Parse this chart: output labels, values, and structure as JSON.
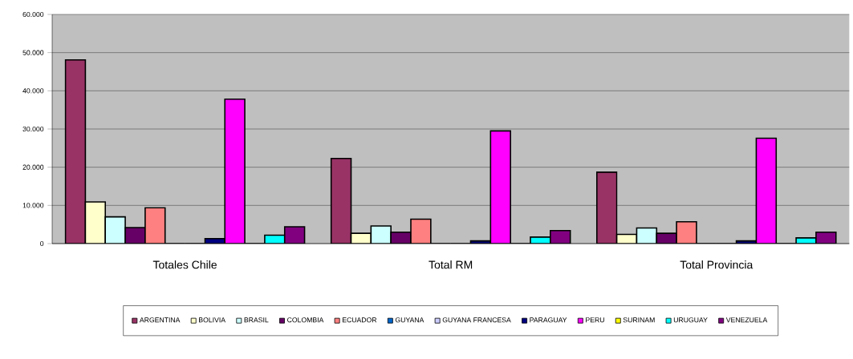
{
  "chart_data": {
    "type": "bar",
    "categories": [
      "Totales Chile",
      "Total RM",
      "Total Provincia"
    ],
    "ylim": [
      0,
      60000
    ],
    "yticks": [
      {
        "value": 0,
        "label": "0"
      },
      {
        "value": 10000,
        "label": "10.000"
      },
      {
        "value": 20000,
        "label": "20.000"
      },
      {
        "value": 30000,
        "label": "30.000"
      },
      {
        "value": 40000,
        "label": "40.000"
      },
      {
        "value": 50000,
        "label": "50.000"
      },
      {
        "value": 60000,
        "label": "60.000"
      }
    ],
    "grid": "y",
    "legend": "bottom",
    "series": [
      {
        "name": "ARGENTINA",
        "color": "#993366",
        "values": [
          48100,
          22300,
          18700
        ]
      },
      {
        "name": "BOLIVIA",
        "color": "#ffffcc",
        "values": [
          10900,
          2700,
          2400
        ]
      },
      {
        "name": "BRASIL",
        "color": "#ccffff",
        "values": [
          7000,
          4600,
          4100
        ]
      },
      {
        "name": "COLOMBIA",
        "color": "#660066",
        "values": [
          4200,
          3000,
          2700
        ]
      },
      {
        "name": "ECUADOR",
        "color": "#ff8080",
        "values": [
          9400,
          6400,
          5700
        ]
      },
      {
        "name": "GUYANA",
        "color": "#0066cc",
        "values": [
          0,
          0,
          0
        ]
      },
      {
        "name": "GUYANA FRANCESA",
        "color": "#ccccff",
        "values": [
          0,
          0,
          0
        ]
      },
      {
        "name": "PARAGUAY",
        "color": "#000080",
        "values": [
          1300,
          700,
          700
        ]
      },
      {
        "name": "PERU",
        "color": "#ff00ff",
        "values": [
          37800,
          29500,
          27600
        ]
      },
      {
        "name": "SURINAM",
        "color": "#ffff00",
        "values": [
          0,
          0,
          0
        ]
      },
      {
        "name": "URUGUAY",
        "color": "#00ffff",
        "values": [
          2200,
          1700,
          1500
        ]
      },
      {
        "name": "VENEZUELA",
        "color": "#800080",
        "values": [
          4400,
          3400,
          3000
        ]
      }
    ]
  }
}
